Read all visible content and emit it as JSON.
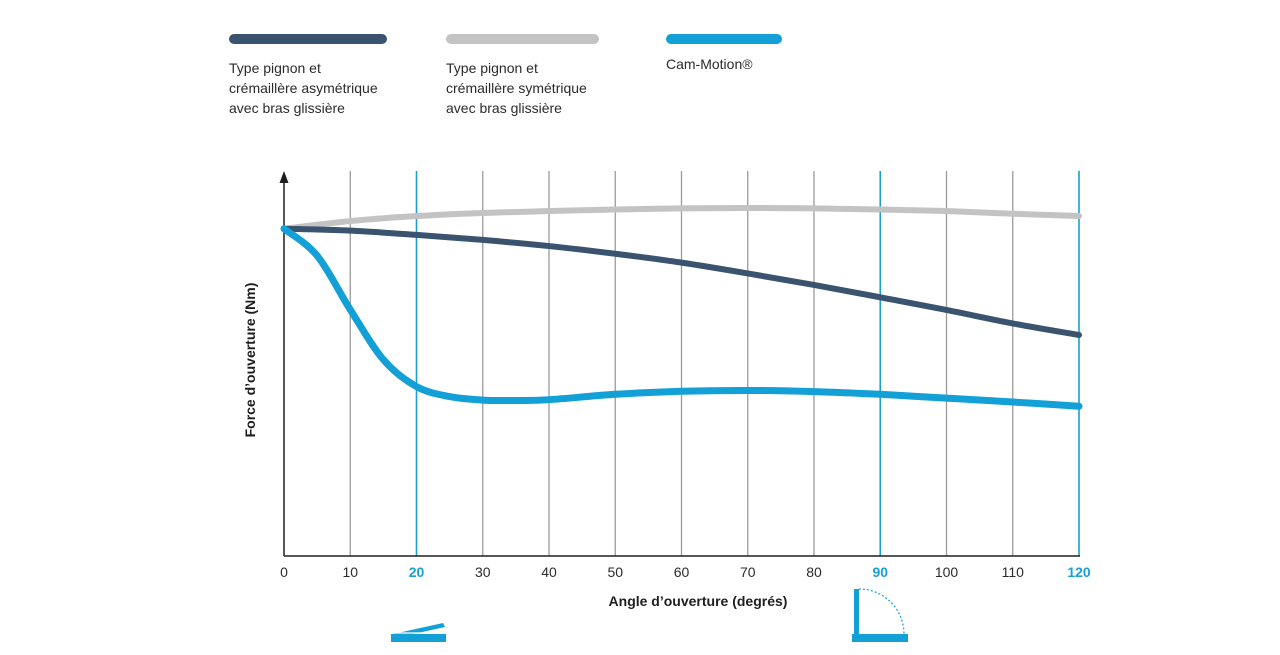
{
  "colors": {
    "asym": "#3a5470",
    "sym": "#c3c3c3",
    "cam": "#12a0d6",
    "grid": "#9a9a9a",
    "highlight_grid": "#1a9fd1",
    "highlight_tick": "#1a9fd1"
  },
  "legend": [
    {
      "label": "Type pignon et\ncrémaillère asymétrique\navec bras glissière",
      "color": "#3a5470"
    },
    {
      "label": "Type pignon et\ncrémaillère symétrique\navec bras glissière",
      "color": "#c3c3c3"
    },
    {
      "label": "Cam-Motion®",
      "color": "#12a0d6"
    }
  ],
  "icons": {
    "left": "lid-slightly-open-icon",
    "right": "lid-open-90-icon"
  },
  "chart_data": {
    "type": "line",
    "xlabel": "Angle d’ouverture (degrés)",
    "ylabel": "Force d’ouverture (Nm)",
    "xlim": [
      0,
      120
    ],
    "ylim": [
      0,
      100
    ],
    "grid": true,
    "x_ticks": [
      0,
      10,
      20,
      30,
      40,
      50,
      60,
      70,
      80,
      90,
      100,
      110,
      120
    ],
    "highlighted_ticks": [
      20,
      90,
      120
    ],
    "series": [
      {
        "name": "Type pignon et crémaillère asymétrique avec bras glissière",
        "color": "#3a5470",
        "x": [
          0,
          10,
          20,
          30,
          40,
          50,
          60,
          70,
          80,
          90,
          100,
          110,
          120
        ],
        "y": [
          85.0,
          84.5,
          83.4,
          82.1,
          80.5,
          78.5,
          76.2,
          73.4,
          70.4,
          67.2,
          63.9,
          60.4,
          57.4
        ]
      },
      {
        "name": "Type pignon et crémaillère symétrique avec bras glissière",
        "color": "#c3c3c3",
        "x": [
          0,
          10,
          20,
          30,
          40,
          50,
          60,
          70,
          80,
          90,
          100,
          110,
          120
        ],
        "y": [
          85.0,
          87.0,
          88.3,
          89.1,
          89.6,
          90.0,
          90.3,
          90.4,
          90.3,
          90.0,
          89.6,
          88.9,
          88.3
        ]
      },
      {
        "name": "Cam-Motion®",
        "color": "#12a0d6",
        "x": [
          0,
          5,
          10,
          15,
          20,
          25,
          30,
          35,
          40,
          50,
          60,
          70,
          80,
          90,
          100,
          110,
          120
        ],
        "y": [
          85.0,
          78.0,
          64.0,
          51.0,
          44.0,
          41.4,
          40.5,
          40.4,
          40.6,
          42.0,
          42.8,
          43.0,
          42.7,
          42.0,
          41.0,
          40.0,
          38.9
        ]
      }
    ]
  }
}
